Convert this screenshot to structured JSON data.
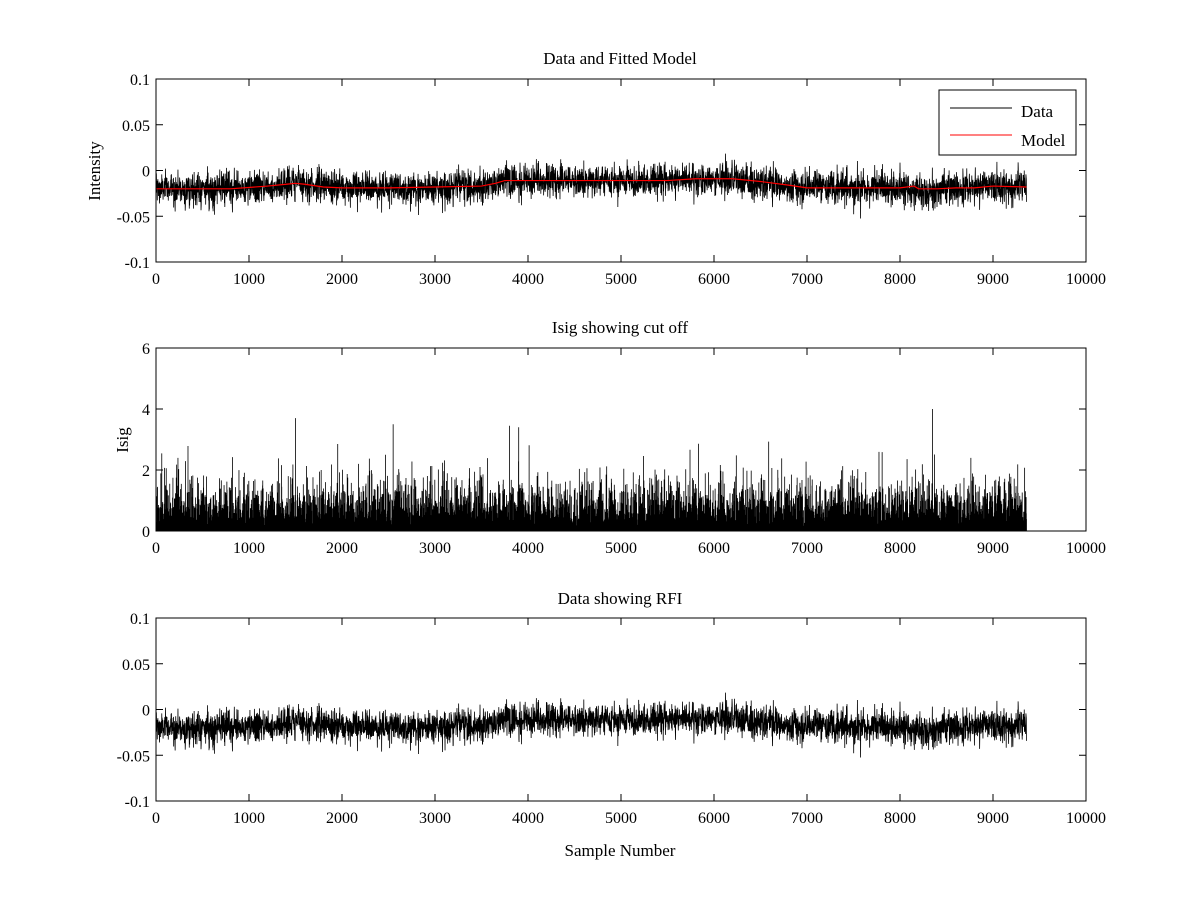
{
  "chart_data": [
    {
      "type": "line",
      "title": "Data and Fitted Model",
      "xlabel": "",
      "ylabel": "Intensity",
      "xlim": [
        0,
        10000
      ],
      "ylim": [
        -0.1,
        0.1
      ],
      "xticks": [
        0,
        1000,
        2000,
        3000,
        4000,
        5000,
        6000,
        7000,
        8000,
        9000,
        10000
      ],
      "xtick_labels": [
        "0",
        "1000",
        "2000",
        "3000",
        "4000",
        "5000",
        "6000",
        "7000",
        "8000",
        "9000",
        "10000"
      ],
      "yticks": [
        -0.1,
        -0.05,
        0,
        0.05,
        0.1
      ],
      "ytick_labels": [
        "-0.1",
        "-0.05",
        "0",
        "0.05",
        "0.1"
      ],
      "grid": false,
      "legend": {
        "position": "top-right",
        "entries": [
          {
            "label": "Data",
            "color": "#000000"
          },
          {
            "label": "Model",
            "color": "#ff0000"
          }
        ]
      },
      "series": [
        {
          "name": "Data",
          "color": "#000000",
          "sample_count": 9360,
          "noise_sigma": 0.009,
          "baseline": {
            "x": [
              0,
              1000,
              1500,
              2000,
              2500,
              3000,
              3500,
              3700,
              4000,
              5000,
              5800,
              6200,
              6800,
              7500,
              8000,
              8300,
              8500,
              9000,
              9360
            ],
            "y": [
              -0.02,
              -0.02,
              -0.013,
              -0.019,
              -0.019,
              -0.018,
              -0.017,
              -0.011,
              -0.011,
              -0.011,
              -0.009,
              -0.01,
              -0.018,
              -0.019,
              -0.019,
              -0.025,
              -0.02,
              -0.017,
              -0.02
            ]
          },
          "y_range": [
            -0.062,
            0.022
          ]
        },
        {
          "name": "Model",
          "color": "#ff0000",
          "x": [
            0,
            500,
            800,
            1200,
            1400,
            1500,
            1600,
            1800,
            2000,
            2500,
            3000,
            3500,
            3650,
            3750,
            4500,
            5500,
            5800,
            6200,
            6500,
            6800,
            7000,
            7500,
            8000,
            8150,
            8200,
            8400,
            8600,
            8800,
            9000,
            9360
          ],
          "y": [
            -0.02,
            -0.02,
            -0.02,
            -0.017,
            -0.015,
            -0.014,
            -0.015,
            -0.018,
            -0.019,
            -0.019,
            -0.018,
            -0.017,
            -0.014,
            -0.011,
            -0.011,
            -0.011,
            -0.009,
            -0.009,
            -0.012,
            -0.016,
            -0.019,
            -0.019,
            -0.019,
            -0.017,
            -0.02,
            -0.02,
            -0.019,
            -0.019,
            -0.017,
            -0.018
          ]
        }
      ]
    },
    {
      "type": "line",
      "title": "Isig showing cut off",
      "xlabel": "",
      "ylabel": "Isig",
      "xlim": [
        0,
        10000
      ],
      "ylim": [
        0,
        6
      ],
      "xticks": [
        0,
        1000,
        2000,
        3000,
        4000,
        5000,
        6000,
        7000,
        8000,
        9000,
        10000
      ],
      "xtick_labels": [
        "0",
        "1000",
        "2000",
        "3000",
        "4000",
        "5000",
        "6000",
        "7000",
        "8000",
        "9000",
        "10000"
      ],
      "yticks": [
        0,
        2,
        4,
        6
      ],
      "ytick_labels": [
        "0",
        "2",
        "4",
        "6"
      ],
      "grid": false,
      "series": [
        {
          "color": "#000000",
          "sample_count": 9360,
          "distribution": "half-normal",
          "scale": 0.8,
          "max_value": 4.0,
          "peaks": {
            "x": [
              1500,
              2550,
              3800,
              3900,
              8350
            ],
            "y": [
              3.7,
              3.5,
              3.45,
              3.4,
              4.0
            ]
          }
        }
      ]
    },
    {
      "type": "line",
      "title": "Data showing RFI",
      "xlabel": "Sample Number",
      "ylabel": "",
      "xlim": [
        0,
        10000
      ],
      "ylim": [
        -0.1,
        0.1
      ],
      "xticks": [
        0,
        1000,
        2000,
        3000,
        4000,
        5000,
        6000,
        7000,
        8000,
        9000,
        10000
      ],
      "xtick_labels": [
        "0",
        "1000",
        "2000",
        "3000",
        "4000",
        "5000",
        "6000",
        "7000",
        "8000",
        "9000",
        "10000"
      ],
      "yticks": [
        -0.1,
        -0.05,
        0,
        0.05,
        0.1
      ],
      "ytick_labels": [
        "-0.1",
        "-0.05",
        "0",
        "0.05",
        "0.1"
      ],
      "grid": false,
      "series": [
        {
          "color": "#000000",
          "sample_count": 9360,
          "noise_sigma": 0.009,
          "baseline": {
            "x": [
              0,
              1000,
              1500,
              2000,
              2500,
              3000,
              3500,
              3700,
              4000,
              5000,
              5800,
              6200,
              6800,
              7500,
              8000,
              8300,
              8500,
              9000,
              9360
            ],
            "y": [
              -0.02,
              -0.02,
              -0.013,
              -0.019,
              -0.019,
              -0.018,
              -0.017,
              -0.011,
              -0.011,
              -0.011,
              -0.009,
              -0.01,
              -0.018,
              -0.019,
              -0.019,
              -0.025,
              -0.02,
              -0.017,
              -0.02
            ]
          },
          "y_range": [
            -0.062,
            0.022
          ]
        }
      ]
    }
  ]
}
